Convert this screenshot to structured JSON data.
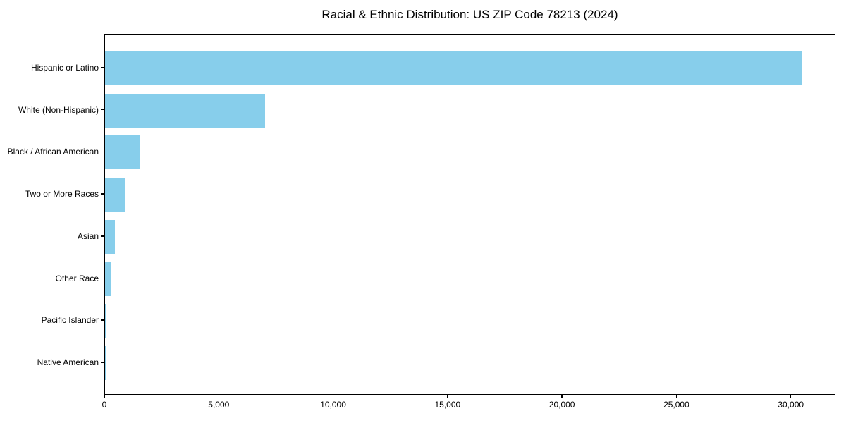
{
  "title": "Racial & Ethnic Distribution: US ZIP Code 78213 (2024)",
  "chart_data": {
    "type": "bar",
    "orientation": "horizontal",
    "title": "Racial & Ethnic Distribution: US ZIP Code 78213 (2024)",
    "xlabel": "",
    "ylabel": "",
    "categories": [
      "Hispanic or Latino",
      "White (Non-Hispanic)",
      "Black / African American",
      "Two or More Races",
      "Asian",
      "Other Race",
      "Pacific Islander",
      "Native American"
    ],
    "values": [
      30430,
      6990,
      1510,
      890,
      430,
      280,
      40,
      15
    ],
    "xlim": [
      0,
      31950
    ],
    "x_ticks": [
      0,
      5000,
      10000,
      15000,
      20000,
      25000,
      30000
    ],
    "x_tick_labels": [
      "0",
      "5,000",
      "10,000",
      "15,000",
      "20,000",
      "25,000",
      "30,000"
    ],
    "grid": false,
    "legend": null,
    "bar_color": "#87CEEB",
    "text_color": "#000000",
    "spine_color": "#000000",
    "background_color": "#ffffff"
  }
}
